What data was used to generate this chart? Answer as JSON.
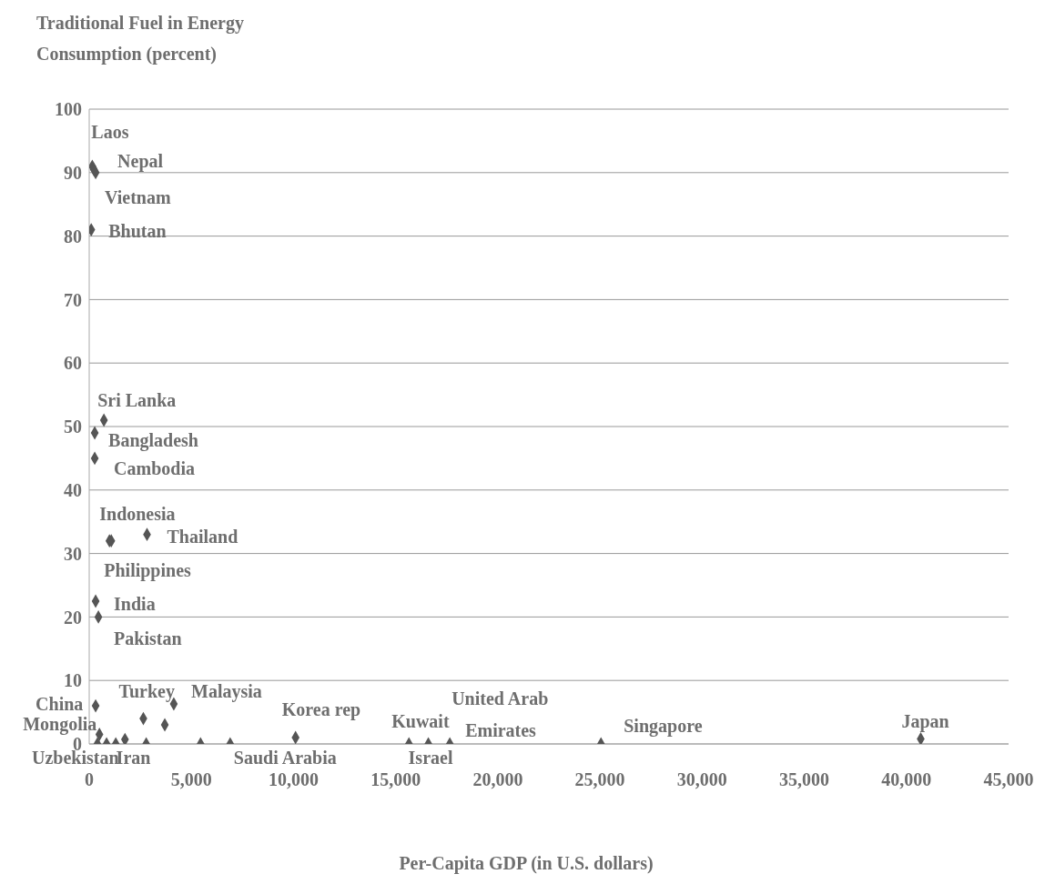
{
  "chart_data": {
    "type": "scatter",
    "ylabel": "Traditional Fuel in Energy Consumption (percent)",
    "xlabel": "Per-Capita GDP (in U.S. dollars)",
    "x": [
      150,
      315,
      225,
      100,
      720,
      270,
      270,
      990,
      1080,
      2830,
      315,
      450,
      315,
      500,
      400,
      2790,
      2650,
      3700,
      6900,
      10100,
      15650,
      16600,
      17650,
      25050,
      40700,
      4140,
      5450,
      850,
      1300,
      1750
    ],
    "values": [
      91,
      90,
      90.5,
      81,
      51,
      49,
      45,
      32,
      32,
      33,
      22.5,
      20,
      6,
      1.5,
      0,
      0,
      4,
      3,
      0,
      1,
      0,
      0,
      0,
      0,
      0.8,
      6.3,
      0,
      0,
      0,
      0.7
    ],
    "color": "#555555",
    "marker": "diamond",
    "annotations": [
      {
        "text": "Laos",
        "x": 150,
        "y": 91
      },
      {
        "text": "Nepal",
        "x": 315,
        "y": 90
      },
      {
        "text": "Vietnam",
        "x": 225,
        "y": 90.5
      },
      {
        "text": "Bhutan",
        "x": 100,
        "y": 81
      },
      {
        "text": "Sri Lanka",
        "x": 720,
        "y": 51
      },
      {
        "text": "Bangladesh",
        "x": 270,
        "y": 49
      },
      {
        "text": "Cambodia",
        "x": 270,
        "y": 45
      },
      {
        "text": "Indonesia",
        "x": 990,
        "y": 32
      },
      {
        "text": "Philippines",
        "x": 1080,
        "y": 32
      },
      {
        "text": "Thailand",
        "x": 2830,
        "y": 33
      },
      {
        "text": "India",
        "x": 315,
        "y": 22.5
      },
      {
        "text": "Pakistan",
        "x": 450,
        "y": 20
      },
      {
        "text": "China",
        "x": 315,
        "y": 6
      },
      {
        "text": "Mongolia",
        "x": 500,
        "y": 1.5
      },
      {
        "text": "Uzbekistan",
        "x": 400,
        "y": 0
      },
      {
        "text": "Iran",
        "x": 2790,
        "y": 0
      },
      {
        "text": "Turkey",
        "x": 2650,
        "y": 4
      },
      {
        "text": "Malaysia",
        "x": 3700,
        "y": 3
      },
      {
        "text": "Saudi Arabia",
        "x": 6900,
        "y": 0
      },
      {
        "text": "Korea rep",
        "x": 10100,
        "y": 1
      },
      {
        "text": "Kuwait",
        "x": 15650,
        "y": 0
      },
      {
        "text": "Israel",
        "x": 16600,
        "y": 0
      },
      {
        "text": "United Arab Emirates",
        "x": 17650,
        "y": 0
      },
      {
        "text": "Singapore",
        "x": 25050,
        "y": 0
      },
      {
        "text": "Japan",
        "x": 40700,
        "y": 0.8
      }
    ],
    "xlim": [
      0,
      45000
    ],
    "xticks": [
      0,
      {
        "value": 5000,
        "label": "5,000"
      },
      {
        "value": 10000,
        "label": "10,000"
      },
      {
        "value": 15000,
        "label": "15,000"
      },
      {
        "value": 20000,
        "label": "20,000"
      },
      {
        "value": 25000,
        "label": "25,000"
      },
      {
        "value": 30000,
        "label": "30,000"
      },
      {
        "value": 35000,
        "label": "35,000"
      },
      {
        "value": 40000,
        "label": "40,000"
      },
      {
        "value": 45000,
        "label": "45,000"
      }
    ],
    "ylim": [
      0,
      100
    ],
    "yticks": [
      0,
      10,
      20,
      30,
      40,
      50,
      60,
      70,
      80,
      90,
      100
    ],
    "grid": "y"
  }
}
